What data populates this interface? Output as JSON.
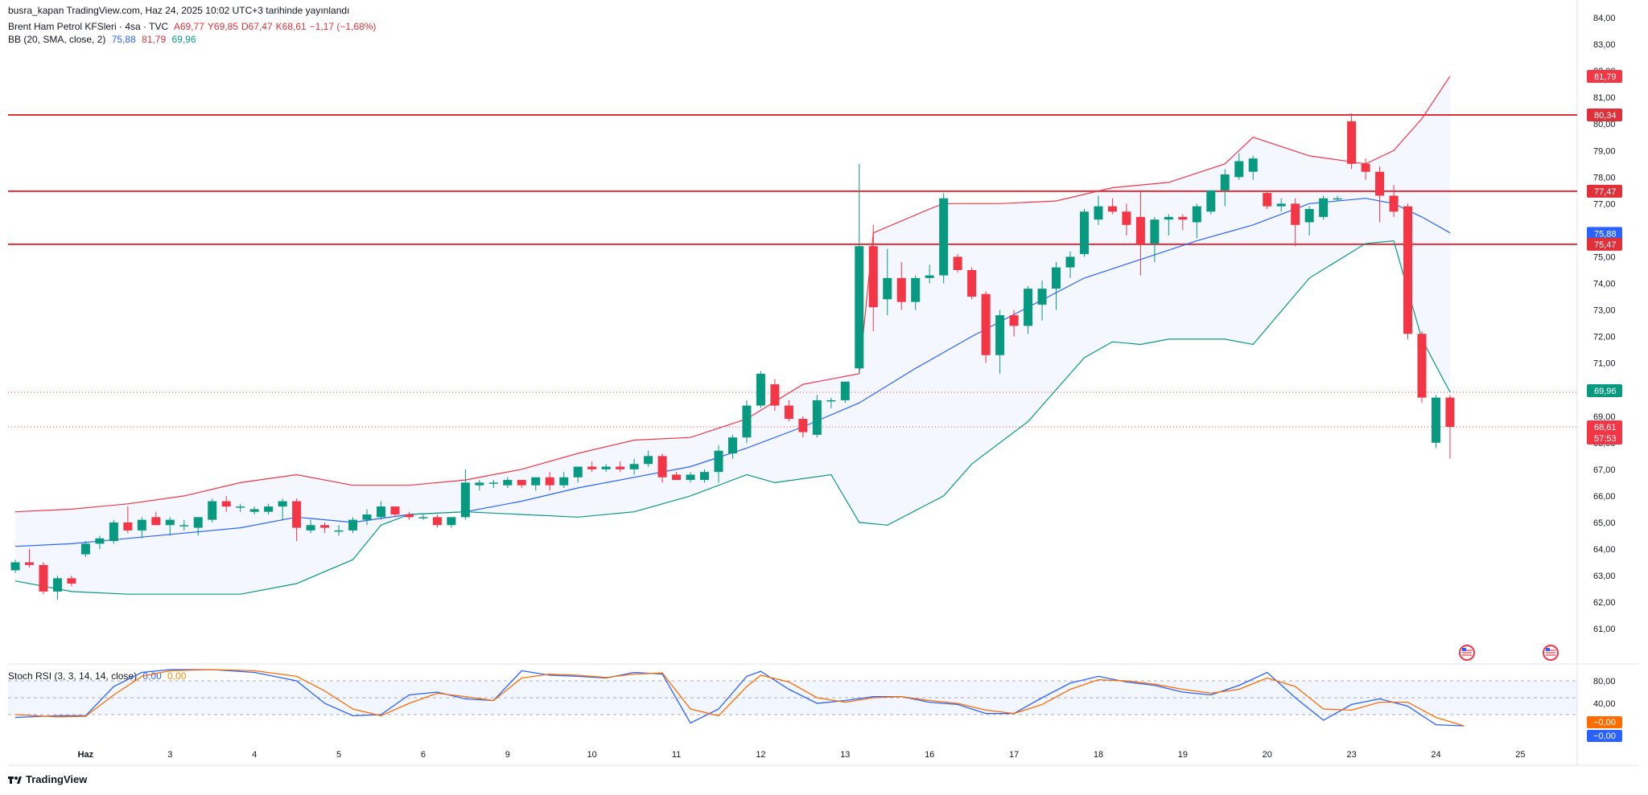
{
  "publisher_line": "busra_kapan TradingView.com, Haz 24, 2025 10:02 UTC+3 tarihinde yayınlandı",
  "legend": {
    "symbol": "Brent Ham Petrol KFSleri · 4sa · TVC",
    "o_label": "A",
    "o_value": "69,77",
    "h_label": "Y",
    "h_value": "69,85",
    "l_label": "D",
    "l_value": "67,47",
    "c_label": "K",
    "c_value": "68,61",
    "change": "−1,17 (−1,68%)",
    "bb_label": "BB (20, SMA, close, 2)",
    "bb_basis": "75,88",
    "bb_upper": "81,79",
    "bb_lower": "69,96"
  },
  "stoch_legend": {
    "label": "Stoch RSI (3, 3, 14, 14, close)",
    "k": "0,00",
    "d": "0,00"
  },
  "price_badges": {
    "upper": "81,79",
    "r1": "80,34",
    "r2": "77,47",
    "basis": "75,88",
    "r3": "75,47",
    "lower": "69,96",
    "last": "68,61",
    "countdown": "57:53"
  },
  "stoch_badges": {
    "d": "−0,00",
    "k": "−0,00"
  },
  "brand": "TradingView",
  "colors": {
    "up": "#089981",
    "down": "#f23645",
    "bb_basis": "#2962ff",
    "bb_upper": "#f23645",
    "bb_lower": "#089981",
    "stoch_k": "#2962ff",
    "stoch_d": "#ff6d00",
    "levels": "#e0313a"
  },
  "chart_data": [
    {
      "type": "candlestick",
      "title": "Brent Ham Petrol KFSleri · 4sa · TVC",
      "y_ticks": [
        "61,00",
        "62,00",
        "63,00",
        "64,00",
        "65,00",
        "66,00",
        "67,00",
        "68,00",
        "69,00",
        "70,00",
        "71,00",
        "72,00",
        "73,00",
        "74,00",
        "75,00",
        "76,00",
        "77,00",
        "78,00",
        "79,00",
        "80,00",
        "81,00",
        "82,00",
        "83,00",
        "84,00"
      ],
      "ylim": [
        60.4,
        84.0
      ],
      "x_labels": [
        {
          "label": "Haz",
          "i": 5
        },
        {
          "label": "3",
          "i": 11
        },
        {
          "label": "4",
          "i": 17
        },
        {
          "label": "5",
          "i": 23
        },
        {
          "label": "6",
          "i": 29
        },
        {
          "label": "9",
          "i": 35
        },
        {
          "label": "10",
          "i": 41
        },
        {
          "label": "11",
          "i": 47
        },
        {
          "label": "12",
          "i": 53
        },
        {
          "label": "13",
          "i": 59
        },
        {
          "label": "16",
          "i": 65
        },
        {
          "label": "17",
          "i": 71
        },
        {
          "label": "18",
          "i": 77
        },
        {
          "label": "19",
          "i": 83
        },
        {
          "label": "20",
          "i": 89
        },
        {
          "label": "23",
          "i": 95
        },
        {
          "label": "24",
          "i": 101
        },
        {
          "label": "25",
          "i": 107
        }
      ],
      "horizontal_levels": [
        80.34,
        77.47,
        75.47
      ],
      "ohlc": [
        [
          63.2,
          63.6,
          63.1,
          63.5
        ],
        [
          63.5,
          64.0,
          63.3,
          63.4
        ],
        [
          63.4,
          63.5,
          62.3,
          62.4
        ],
        [
          62.4,
          63.0,
          62.1,
          62.9
        ],
        [
          62.9,
          63.0,
          62.6,
          62.7
        ],
        [
          63.8,
          64.3,
          63.7,
          64.2
        ],
        [
          64.2,
          64.5,
          64.0,
          64.4
        ],
        [
          64.3,
          65.1,
          64.2,
          65.0
        ],
        [
          65.0,
          65.6,
          64.6,
          64.7
        ],
        [
          64.7,
          65.2,
          64.4,
          65.1
        ],
        [
          65.2,
          65.4,
          64.9,
          64.9
        ],
        [
          64.9,
          65.2,
          64.5,
          65.1
        ],
        [
          64.9,
          65.1,
          64.7,
          64.9
        ],
        [
          64.8,
          65.2,
          64.5,
          65.2
        ],
        [
          65.1,
          65.9,
          65.0,
          65.8
        ],
        [
          65.8,
          66.0,
          65.4,
          65.6
        ],
        [
          65.6,
          65.7,
          65.4,
          65.6
        ],
        [
          65.4,
          65.6,
          65.3,
          65.5
        ],
        [
          65.4,
          65.7,
          65.3,
          65.6
        ],
        [
          65.6,
          65.9,
          65.1,
          65.8
        ],
        [
          65.8,
          65.9,
          64.3,
          64.8
        ],
        [
          64.7,
          65.1,
          64.6,
          64.9
        ],
        [
          64.9,
          65.0,
          64.6,
          64.8
        ],
        [
          64.7,
          64.9,
          64.5,
          64.7
        ],
        [
          64.7,
          65.2,
          64.6,
          65.1
        ],
        [
          65.1,
          65.5,
          64.9,
          65.3
        ],
        [
          65.2,
          65.8,
          65.1,
          65.6
        ],
        [
          65.6,
          65.6,
          65.2,
          65.3
        ],
        [
          65.3,
          65.4,
          65.1,
          65.2
        ],
        [
          65.2,
          65.3,
          65.1,
          65.2
        ],
        [
          65.2,
          65.3,
          64.8,
          64.9
        ],
        [
          64.9,
          65.2,
          64.8,
          65.2
        ],
        [
          65.2,
          67.0,
          65.1,
          66.5
        ],
        [
          66.4,
          66.6,
          66.2,
          66.5
        ],
        [
          66.5,
          66.6,
          66.3,
          66.5
        ],
        [
          66.4,
          66.7,
          66.3,
          66.6
        ],
        [
          66.6,
          66.6,
          66.3,
          66.4
        ],
        [
          66.4,
          66.7,
          66.2,
          66.7
        ],
        [
          66.7,
          66.9,
          66.2,
          66.4
        ],
        [
          66.4,
          66.9,
          66.3,
          66.7
        ],
        [
          66.7,
          67.1,
          66.5,
          67.1
        ],
        [
          67.1,
          67.3,
          66.9,
          67.0
        ],
        [
          67.0,
          67.2,
          66.9,
          67.1
        ],
        [
          67.1,
          67.3,
          66.9,
          67.0
        ],
        [
          67.0,
          67.4,
          66.8,
          67.2
        ],
        [
          67.2,
          67.7,
          67.1,
          67.5
        ],
        [
          67.5,
          67.6,
          66.5,
          66.7
        ],
        [
          66.8,
          66.9,
          66.6,
          66.6
        ],
        [
          66.6,
          66.9,
          66.5,
          66.8
        ],
        [
          66.6,
          67.0,
          66.5,
          66.9
        ],
        [
          66.9,
          67.9,
          66.5,
          67.7
        ],
        [
          67.6,
          68.3,
          67.4,
          68.2
        ],
        [
          68.2,
          69.6,
          68.0,
          69.4
        ],
        [
          69.4,
          70.7,
          69.3,
          70.6
        ],
        [
          70.2,
          70.4,
          69.2,
          69.4
        ],
        [
          69.4,
          69.6,
          68.8,
          68.9
        ],
        [
          68.9,
          69.0,
          68.2,
          68.4
        ],
        [
          68.3,
          69.8,
          68.2,
          69.6
        ],
        [
          69.6,
          69.7,
          69.3,
          69.6
        ],
        [
          69.6,
          70.3,
          69.5,
          70.3
        ],
        [
          70.8,
          78.5,
          70.6,
          75.4
        ],
        [
          75.4,
          76.2,
          72.2,
          73.1
        ],
        [
          73.4,
          75.3,
          72.8,
          74.2
        ],
        [
          74.2,
          74.8,
          73.0,
          73.3
        ],
        [
          73.3,
          74.3,
          73.0,
          74.2
        ],
        [
          74.2,
          74.7,
          74.0,
          74.3
        ],
        [
          74.3,
          77.4,
          74.0,
          77.2
        ],
        [
          75.0,
          75.1,
          74.4,
          74.5
        ],
        [
          74.5,
          74.6,
          73.4,
          73.5
        ],
        [
          73.6,
          73.7,
          71.0,
          71.3
        ],
        [
          71.3,
          73.0,
          70.6,
          72.8
        ],
        [
          72.8,
          73.0,
          72.0,
          72.4
        ],
        [
          72.4,
          73.9,
          72.1,
          73.8
        ],
        [
          73.2,
          74.1,
          72.6,
          73.8
        ],
        [
          73.8,
          74.8,
          73.0,
          74.6
        ],
        [
          74.6,
          75.2,
          74.2,
          75.0
        ],
        [
          75.1,
          76.8,
          75.0,
          76.7
        ],
        [
          76.4,
          77.3,
          76.2,
          76.9
        ],
        [
          76.9,
          77.2,
          76.6,
          76.7
        ],
        [
          76.7,
          77.0,
          75.8,
          76.2
        ],
        [
          76.5,
          77.5,
          74.3,
          75.5
        ],
        [
          75.5,
          76.5,
          74.8,
          76.4
        ],
        [
          76.4,
          76.6,
          75.8,
          76.5
        ],
        [
          76.5,
          76.6,
          76.0,
          76.4
        ],
        [
          76.3,
          77.0,
          75.7,
          76.9
        ],
        [
          76.7,
          77.5,
          76.6,
          77.5
        ],
        [
          77.5,
          78.3,
          76.9,
          78.1
        ],
        [
          78.0,
          78.9,
          77.9,
          78.6
        ],
        [
          78.2,
          78.8,
          77.9,
          78.7
        ],
        [
          77.4,
          77.5,
          76.8,
          76.9
        ],
        [
          76.9,
          77.2,
          76.7,
          77.0
        ],
        [
          77.0,
          77.2,
          75.4,
          76.2
        ],
        [
          76.3,
          76.9,
          75.8,
          76.8
        ],
        [
          76.5,
          77.3,
          76.4,
          77.2
        ],
        [
          77.2,
          77.3,
          77.1,
          77.2
        ],
        [
          80.1,
          80.4,
          78.3,
          78.5
        ],
        [
          78.5,
          78.7,
          77.9,
          78.2
        ],
        [
          78.2,
          78.4,
          76.3,
          77.3
        ],
        [
          77.3,
          77.7,
          76.5,
          76.7
        ],
        [
          76.9,
          77.0,
          71.9,
          72.1
        ],
        [
          72.1,
          72.2,
          69.5,
          69.7
        ],
        [
          68.0,
          69.8,
          67.8,
          69.7
        ],
        [
          69.7,
          69.8,
          67.4,
          68.6
        ]
      ]
    },
    {
      "type": "line",
      "title": "BB (20, SMA, close, 2)",
      "series": [
        {
          "name": "upper",
          "x": [
            0,
            4,
            8,
            12,
            16,
            20,
            24,
            28,
            32,
            36,
            40,
            44,
            48,
            52,
            56,
            60,
            61,
            65,
            66,
            70,
            74,
            78,
            82,
            86,
            88,
            92,
            96,
            98,
            100,
            102
          ],
          "values": [
            65.4,
            65.5,
            65.7,
            66.0,
            66.5,
            66.8,
            66.4,
            66.4,
            66.6,
            67.0,
            67.6,
            68.1,
            68.2,
            68.9,
            70.2,
            70.6,
            75.9,
            76.8,
            77.0,
            77.0,
            77.1,
            77.6,
            77.8,
            78.5,
            79.5,
            78.8,
            78.5,
            79.0,
            80.2,
            81.8
          ]
        },
        {
          "name": "basis",
          "x": [
            0,
            4,
            8,
            12,
            16,
            20,
            24,
            28,
            32,
            36,
            40,
            44,
            48,
            52,
            56,
            60,
            64,
            68,
            72,
            76,
            80,
            84,
            88,
            92,
            96,
            98,
            100,
            102
          ],
          "values": [
            64.1,
            64.2,
            64.4,
            64.6,
            64.8,
            65.2,
            65.0,
            65.3,
            65.4,
            65.8,
            66.3,
            66.7,
            67.1,
            67.8,
            68.6,
            69.5,
            70.8,
            72.0,
            73.1,
            74.2,
            74.9,
            75.6,
            76.2,
            77.0,
            77.2,
            77.0,
            76.5,
            75.9
          ]
        },
        {
          "name": "lower",
          "x": [
            0,
            4,
            8,
            12,
            16,
            20,
            24,
            26,
            28,
            32,
            36,
            40,
            44,
            48,
            52,
            54,
            58,
            60,
            62,
            66,
            68,
            72,
            76,
            78,
            80,
            82,
            86,
            88,
            92,
            96,
            98,
            100,
            102
          ],
          "values": [
            62.8,
            62.4,
            62.3,
            62.3,
            62.3,
            62.7,
            63.6,
            64.9,
            65.3,
            65.4,
            65.3,
            65.2,
            65.4,
            66.0,
            66.8,
            66.5,
            66.8,
            65.0,
            64.9,
            66.0,
            67.2,
            68.8,
            71.2,
            71.8,
            71.7,
            71.9,
            71.9,
            71.7,
            74.2,
            75.5,
            75.6,
            71.9,
            69.9
          ]
        }
      ]
    },
    {
      "type": "line",
      "title": "Stoch RSI (3, 3, 14, 14, close)",
      "ylim": [
        -10,
        110
      ],
      "y_ticks": [
        "80,00",
        "40,00"
      ],
      "levels": [
        80,
        20
      ],
      "series": [
        {
          "name": "K",
          "x": [
            0,
            3,
            5,
            7,
            9,
            11,
            14,
            17,
            20,
            22,
            24,
            26,
            28,
            30,
            32,
            34,
            36,
            38,
            40,
            42,
            44,
            46,
            48,
            50,
            52,
            53,
            55,
            57,
            59,
            61,
            63,
            65,
            67,
            69,
            71,
            73,
            75,
            77,
            79,
            81,
            83,
            85,
            87,
            89,
            91,
            93,
            95,
            97,
            99,
            101,
            103
          ],
          "values": [
            15,
            18,
            18,
            70,
            95,
            100,
            100,
            95,
            80,
            40,
            18,
            20,
            55,
            60,
            48,
            45,
            98,
            90,
            88,
            85,
            95,
            92,
            5,
            30,
            88,
            97,
            65,
            40,
            45,
            52,
            52,
            42,
            38,
            22,
            22,
            50,
            76,
            88,
            78,
            72,
            60,
            55,
            72,
            95,
            50,
            10,
            38,
            48,
            35,
            2,
            0
          ]
        },
        {
          "name": "D",
          "x": [
            0,
            3,
            5,
            7,
            9,
            11,
            14,
            17,
            20,
            22,
            24,
            26,
            28,
            30,
            32,
            34,
            36,
            38,
            40,
            42,
            44,
            46,
            48,
            50,
            52,
            53,
            55,
            57,
            59,
            61,
            63,
            65,
            67,
            69,
            71,
            73,
            75,
            77,
            79,
            81,
            83,
            85,
            87,
            89,
            91,
            93,
            95,
            97,
            99,
            101,
            103
          ],
          "values": [
            20,
            16,
            17,
            55,
            88,
            98,
            100,
            98,
            88,
            62,
            30,
            18,
            40,
            58,
            52,
            45,
            85,
            92,
            90,
            86,
            92,
            94,
            30,
            18,
            70,
            90,
            78,
            50,
            42,
            50,
            52,
            45,
            40,
            28,
            22,
            38,
            65,
            82,
            80,
            74,
            65,
            58,
            65,
            85,
            70,
            30,
            28,
            42,
            42,
            15,
            0
          ]
        }
      ]
    }
  ]
}
